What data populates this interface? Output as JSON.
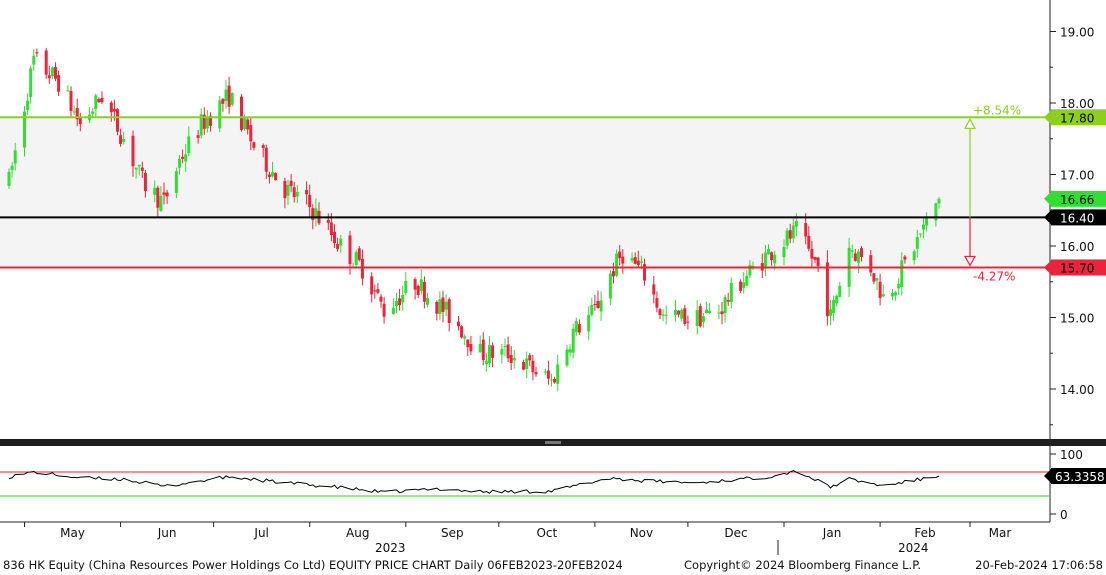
{
  "footer": {
    "title": "836 HK Equity (China Resources Power Holdings Co Ltd) EQUITY PRICE CHART  Daily 06FEB2023-20FEB2024",
    "copyright": "Copyright© 2024 Bloomberg Finance L.P.",
    "timestamp": "20-Feb-2024 17:06:58"
  },
  "colors": {
    "up": "#33dd33",
    "down": "#e8253a",
    "resistance": "#8ccf1e",
    "support": "#e8253a",
    "pivot": "#000000",
    "last": "#33dd33",
    "rsi_line": "#000000",
    "rsi_upper": "#e8253a",
    "rsi_lower": "#33cc33"
  },
  "chart_data": [
    {
      "type": "candlestick",
      "x_axis": {
        "months": [
          "May",
          "Jun",
          "Jul",
          "Aug",
          "Sep",
          "Oct",
          "Nov",
          "Dec",
          "Jan",
          "Feb",
          "Mar"
        ],
        "years": [
          "2023",
          "2024"
        ]
      },
      "y_axis": {
        "ticks": [
          "19.00",
          "18.00",
          "17.00",
          "16.00",
          "15.00",
          "14.00"
        ],
        "ylim": [
          13.2,
          19.4
        ]
      },
      "reference_lines": [
        {
          "label": "17.80",
          "value": 17.8,
          "role": "resistance"
        },
        {
          "label": "16.40",
          "value": 16.4,
          "role": "pivot"
        },
        {
          "label": "15.70",
          "value": 15.7,
          "role": "support"
        }
      ],
      "last_price": {
        "label": "16.66",
        "value": 16.66
      },
      "annotations": [
        {
          "text": "+8.54%",
          "role": "upside"
        },
        {
          "text": "-4.27%",
          "role": "downside"
        }
      ],
      "anchors": [
        [
          "2023-04-26",
          16.9
        ],
        [
          "2023-05-04",
          18.6
        ],
        [
          "2023-05-12",
          18.3
        ],
        [
          "2023-05-19",
          17.7
        ],
        [
          "2023-05-26",
          18.1
        ],
        [
          "2023-06-02",
          17.5
        ],
        [
          "2023-06-08",
          16.9
        ],
        [
          "2023-06-15",
          16.6
        ],
        [
          "2023-06-20",
          17.2
        ],
        [
          "2023-06-27",
          17.7
        ],
        [
          "2023-07-06",
          18.1
        ],
        [
          "2023-07-14",
          17.4
        ],
        [
          "2023-07-24",
          16.8
        ],
        [
          "2023-07-31",
          16.6
        ],
        [
          "2023-08-04",
          16.4
        ],
        [
          "2023-08-11",
          16.0
        ],
        [
          "2023-08-18",
          15.7
        ],
        [
          "2023-08-25",
          15.1
        ],
        [
          "2023-09-04",
          15.5
        ],
        [
          "2023-09-11",
          15.2
        ],
        [
          "2023-09-18",
          14.9
        ],
        [
          "2023-09-25",
          14.5
        ],
        [
          "2023-10-04",
          14.5
        ],
        [
          "2023-10-11",
          14.3
        ],
        [
          "2023-10-18",
          14.1
        ],
        [
          "2023-10-25",
          14.8
        ],
        [
          "2023-11-01",
          15.1
        ],
        [
          "2023-11-06",
          15.6
        ],
        [
          "2023-11-10",
          15.9
        ],
        [
          "2023-11-17",
          15.6
        ],
        [
          "2023-11-23",
          15.0
        ],
        [
          "2023-12-04",
          15.0
        ],
        [
          "2023-12-11",
          15.1
        ],
        [
          "2023-12-18",
          15.5
        ],
        [
          "2023-12-27",
          15.9
        ],
        [
          "2024-01-05",
          16.2
        ],
        [
          "2024-01-12",
          15.7
        ],
        [
          "2024-01-16",
          15.0
        ],
        [
          "2024-01-22",
          16.0
        ],
        [
          "2024-01-29",
          15.7
        ],
        [
          "2024-02-02",
          15.3
        ],
        [
          "2024-02-06",
          15.5
        ],
        [
          "2024-02-20",
          16.66
        ]
      ]
    },
    {
      "type": "line",
      "name": "RSI",
      "ylim": [
        0,
        100
      ],
      "y_ticks": [
        "100",
        "0"
      ],
      "bands": [
        70,
        30
      ],
      "last_value": {
        "label": "63.3358",
        "value": 63.3358
      },
      "anchors": [
        [
          "2023-04-26",
          62
        ],
        [
          "2023-05-04",
          70
        ],
        [
          "2023-05-19",
          60
        ],
        [
          "2023-06-02",
          58
        ],
        [
          "2023-06-15",
          46
        ],
        [
          "2023-07-06",
          62
        ],
        [
          "2023-07-24",
          52
        ],
        [
          "2023-08-11",
          44
        ],
        [
          "2023-08-25",
          36
        ],
        [
          "2023-09-11",
          42
        ],
        [
          "2023-09-25",
          37
        ],
        [
          "2023-10-18",
          38
        ],
        [
          "2023-11-06",
          60
        ],
        [
          "2023-11-17",
          55
        ],
        [
          "2023-12-04",
          52
        ],
        [
          "2023-12-27",
          62
        ],
        [
          "2024-01-05",
          72
        ],
        [
          "2024-01-16",
          45
        ],
        [
          "2024-01-22",
          58
        ],
        [
          "2024-02-02",
          47
        ],
        [
          "2024-02-20",
          63.3358
        ]
      ]
    }
  ]
}
